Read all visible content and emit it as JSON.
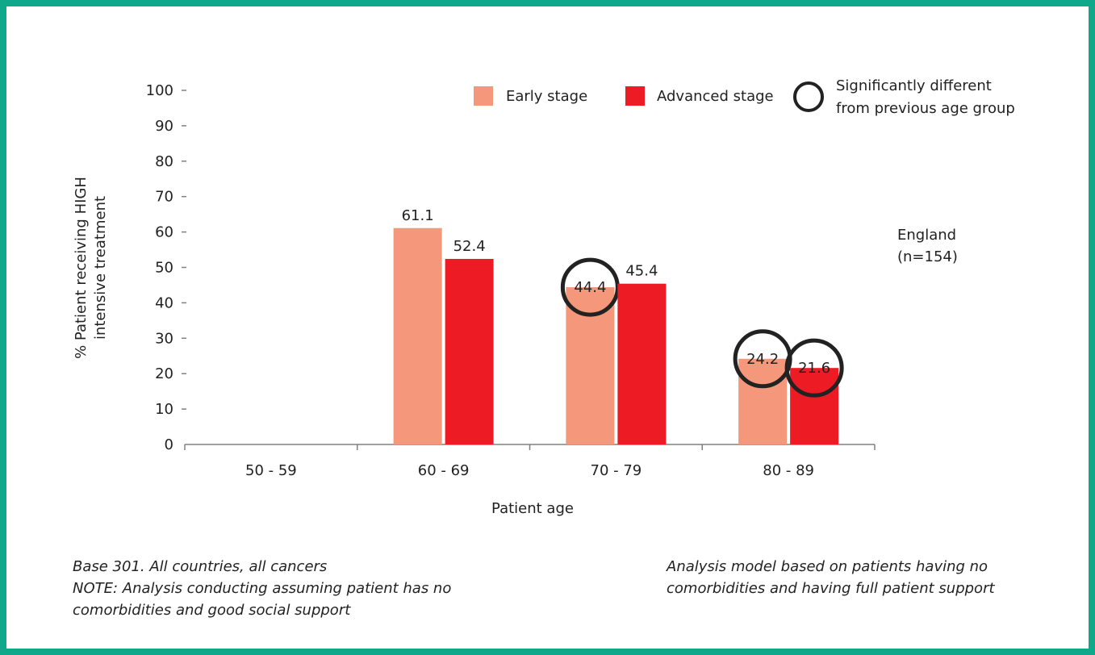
{
  "chart_data": {
    "type": "bar",
    "categories": [
      "50 - 59",
      "60 - 69",
      "70 - 79",
      "80 - 89"
    ],
    "series": [
      {
        "name": "Early stage",
        "color": "#f4977a",
        "values": [
          null,
          61.1,
          44.4,
          24.2
        ],
        "labels": [
          "",
          "61.1",
          "44.4",
          "24.2"
        ],
        "significant": [
          false,
          false,
          true,
          true
        ]
      },
      {
        "name": "Advanced stage",
        "color": "#ed1c24",
        "values": [
          null,
          52.4,
          45.4,
          21.6
        ],
        "labels": [
          "",
          "52.4",
          "45.4",
          "21.6"
        ],
        "significant": [
          false,
          false,
          false,
          true
        ]
      }
    ],
    "yticks": [
      "0",
      "10",
      "20",
      "30",
      "40",
      "50",
      "60",
      "70",
      "80",
      "90",
      "100"
    ],
    "ylim": [
      0,
      100
    ],
    "ylabel_lines": [
      "% Patient receiving HIGH",
      "intensive treatment"
    ],
    "xlabel": "Patient age",
    "legend_position": "top-right",
    "significance_legend_lines": [
      "Significantly different",
      "from previous age group"
    ]
  },
  "region_label": "England\n(n=154)",
  "notes": {
    "left": "Base 301. All countries, all cancers\nNOTE: Analysis conducting assuming patient has no\ncomorbidities and good social support",
    "right": "Analysis model based on patients having no\ncomorbidities and having full patient support"
  },
  "colors": {
    "border": "#0fa88a",
    "axis": "#808080"
  }
}
